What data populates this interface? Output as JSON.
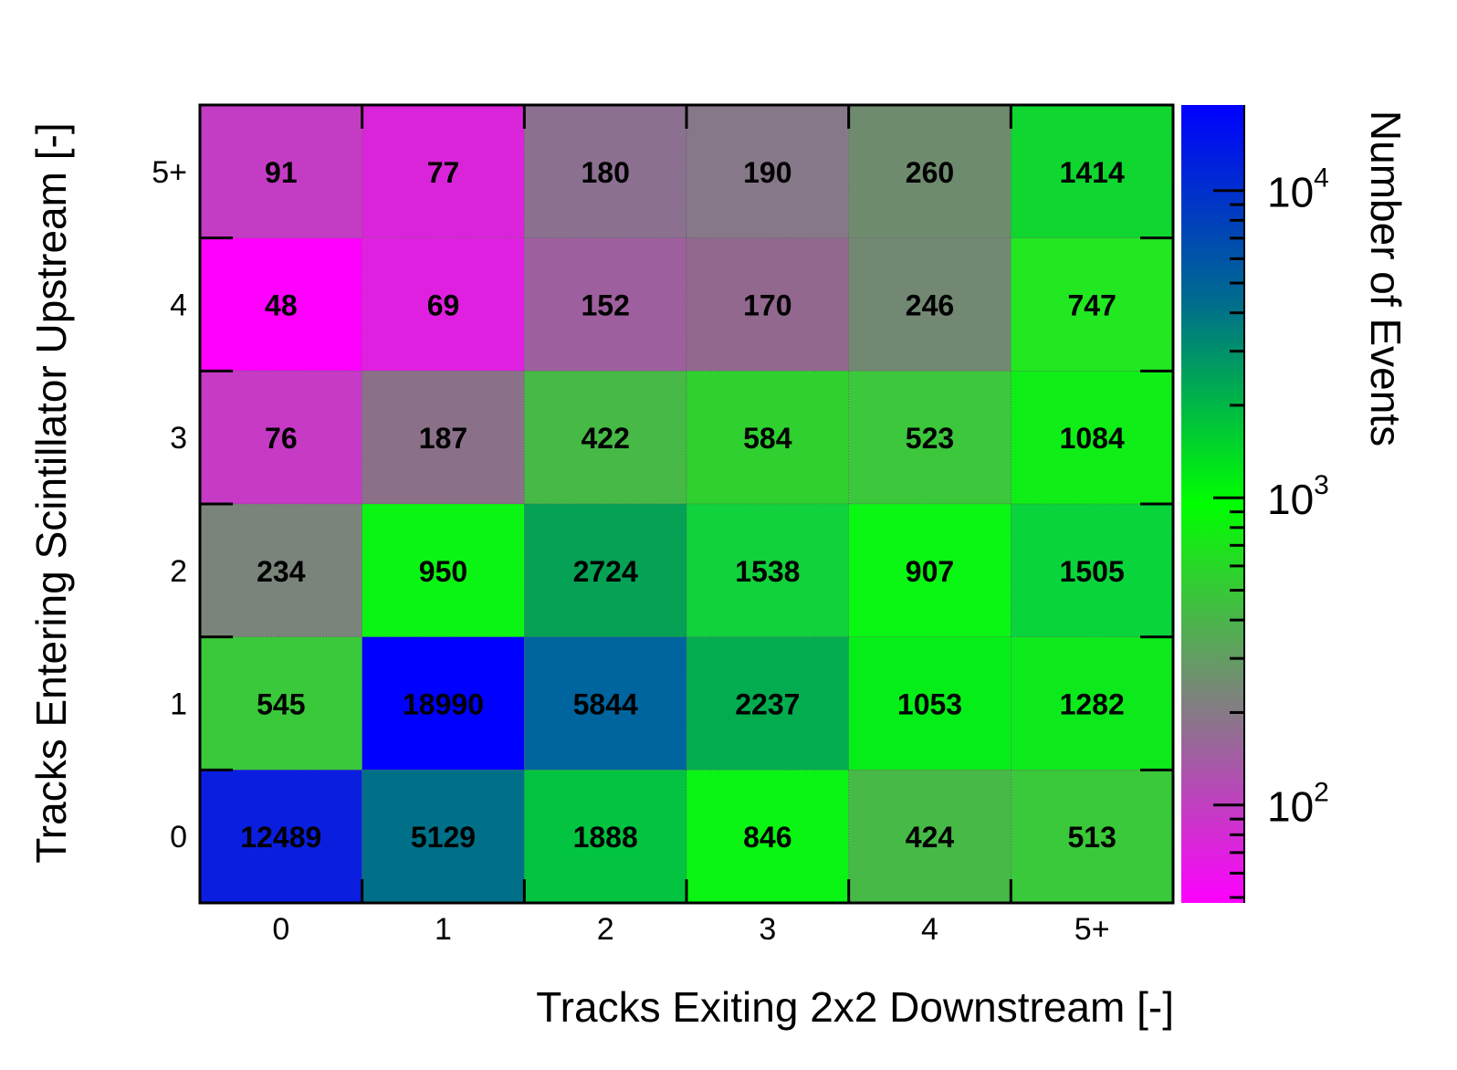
{
  "chart_data": {
    "type": "heatmap",
    "xlabel": "Tracks Exiting 2x2 Downstream [-]",
    "ylabel": "Tracks Entering Scintillator Upstream [-]",
    "zlabel": "Number of Events",
    "x_categories": [
      "0",
      "1",
      "2",
      "3",
      "4",
      "5+"
    ],
    "y_categories": [
      "0",
      "1",
      "2",
      "3",
      "4",
      "5+"
    ],
    "z_scale": "log",
    "z_range": [
      48,
      18990
    ],
    "z_ticks": [
      {
        "base": "10",
        "exp": "2",
        "value": 100
      },
      {
        "base": "10",
        "exp": "3",
        "value": 1000
      },
      {
        "base": "10",
        "exp": "4",
        "value": 10000
      }
    ],
    "values_by_row": [
      {
        "y": "5+",
        "values": [
          91,
          77,
          180,
          190,
          260,
          1414
        ]
      },
      {
        "y": "4",
        "values": [
          48,
          69,
          152,
          170,
          246,
          747
        ]
      },
      {
        "y": "3",
        "values": [
          76,
          187,
          422,
          584,
          523,
          1084
        ]
      },
      {
        "y": "2",
        "values": [
          234,
          950,
          2724,
          1538,
          907,
          1505
        ]
      },
      {
        "y": "1",
        "values": [
          545,
          18990,
          5844,
          2237,
          1053,
          1282
        ]
      },
      {
        "y": "0",
        "values": [
          12489,
          5129,
          1888,
          846,
          424,
          513
        ]
      }
    ],
    "cell_colors_by_row": [
      [
        "#c43cc4",
        "#d924d9",
        "#8b7090",
        "#867889",
        "#6e8b6e",
        "#10d630"
      ],
      [
        "#ff00ff",
        "#e020e0",
        "#9e5f9e",
        "#92688f",
        "#738873",
        "#22e822"
      ],
      [
        "#c63ac6",
        "#8a7088",
        "#46b946",
        "#30d030",
        "#3cc73c",
        "#10ee18"
      ],
      [
        "#7a847a",
        "#0af514",
        "#05a154",
        "#11d23c",
        "#0af714",
        "#0ad43c"
      ],
      [
        "#3ac93a",
        "#0000ff",
        "#00659e",
        "#03ad4f",
        "#06ee18",
        "#0dea1c"
      ],
      [
        "#0a1ee0",
        "#007088",
        "#02c440",
        "#0af514",
        "#46b946",
        "#3ac93a"
      ]
    ],
    "colorscale": [
      "#ff00ff",
      "#808080",
      "#00ff00",
      "#006e8c",
      "#0000ff"
    ]
  }
}
